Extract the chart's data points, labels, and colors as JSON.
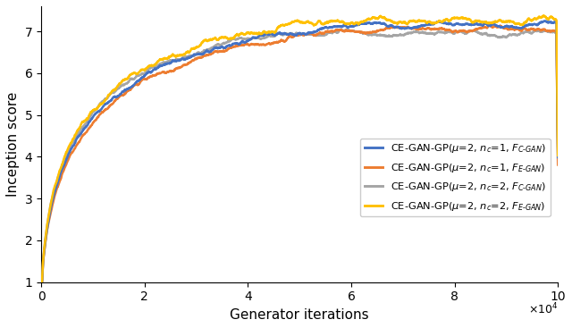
{
  "title": "",
  "xlabel": "Generator iterations",
  "ylabel": "Inception score",
  "xlim": [
    0,
    100000
  ],
  "ylim": [
    1,
    7.6
  ],
  "yticks": [
    1,
    2,
    3,
    4,
    5,
    6,
    7
  ],
  "xticks": [
    0,
    20000,
    40000,
    60000,
    80000,
    100000
  ],
  "xtick_labels": [
    "0",
    "2",
    "4",
    "6",
    "8",
    "10"
  ],
  "colors": [
    "#4472C4",
    "#ED7D31",
    "#A5A5A5",
    "#FFC000"
  ],
  "linewidth": 1.8,
  "curve_params": {
    "blue": {
      "a": 1.42,
      "b": 0.0012,
      "c": 1.0,
      "plateau": 7.15,
      "noise": 0.07,
      "seed": 42
    },
    "orange": {
      "a": 1.42,
      "b": 0.0011,
      "c": 1.0,
      "plateau": 7.05,
      "noise": 0.07,
      "seed": 43
    },
    "gray": {
      "a": 1.44,
      "b": 0.0013,
      "c": 1.0,
      "plateau": 6.95,
      "noise": 0.07,
      "seed": 44
    },
    "yellow": {
      "a": 1.45,
      "b": 0.0013,
      "c": 1.0,
      "plateau": 7.25,
      "noise": 0.08,
      "seed": 45
    }
  }
}
